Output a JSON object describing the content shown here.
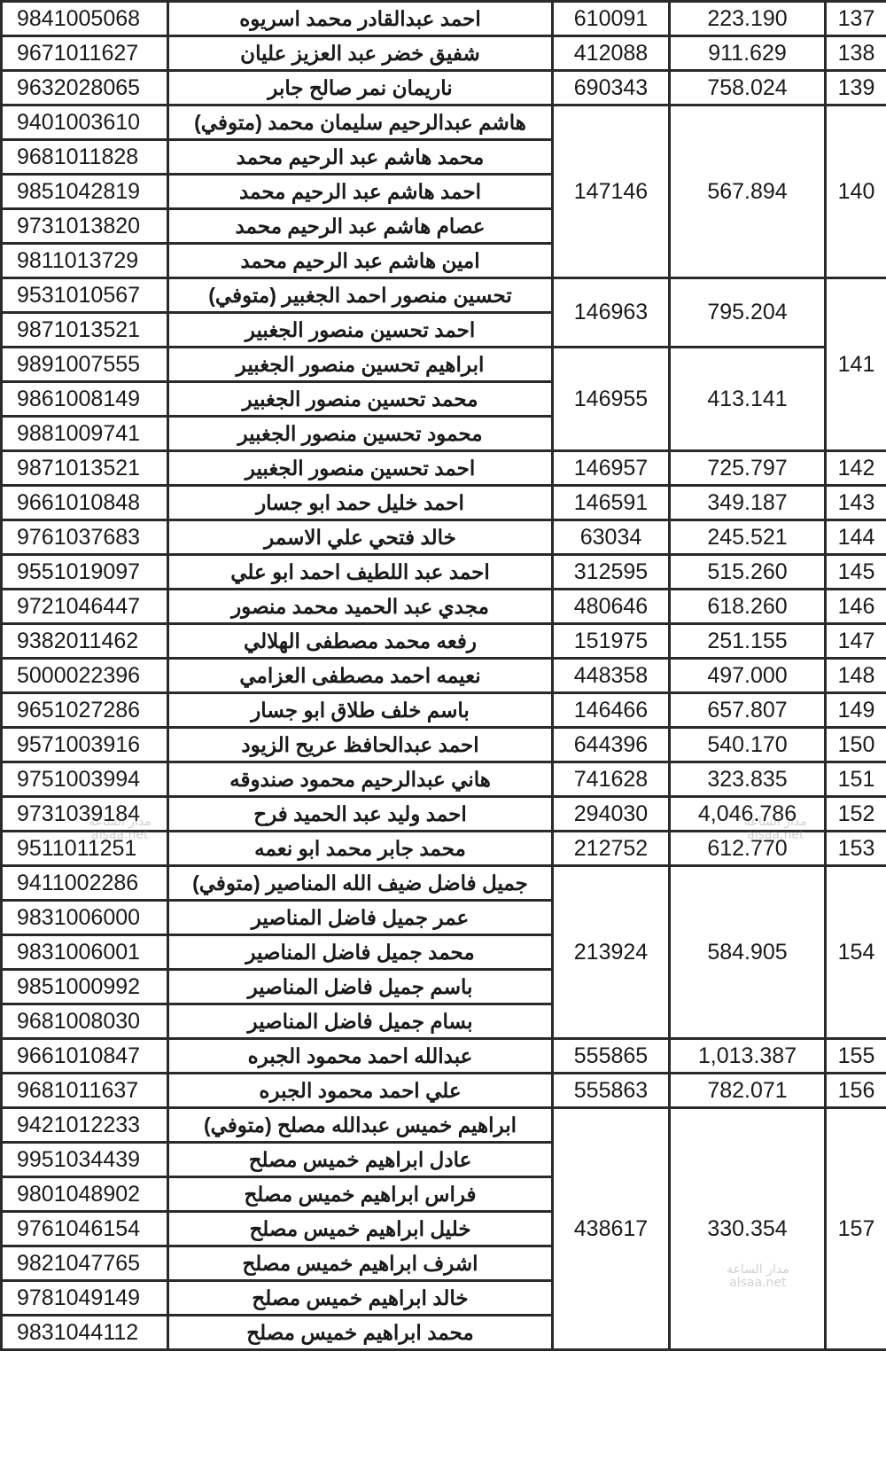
{
  "entries": [
    {
      "no": "137",
      "parcels": [
        {
          "area": "223.190",
          "parcel": "610091",
          "owners": [
            {
              "name": "احمد عبدالقادر محمد اسريوه",
              "id": "9841005068"
            }
          ]
        }
      ]
    },
    {
      "no": "138",
      "parcels": [
        {
          "area": "911.629",
          "parcel": "412088",
          "owners": [
            {
              "name": "شفيق خضر عبد العزيز عليان",
              "id": "9671011627"
            }
          ]
        }
      ]
    },
    {
      "no": "139",
      "parcels": [
        {
          "area": "758.024",
          "parcel": "690343",
          "owners": [
            {
              "name": "ناريمان نمر صالح جابر",
              "id": "9632028065"
            }
          ]
        }
      ]
    },
    {
      "no": "140",
      "parcels": [
        {
          "area": "567.894",
          "parcel": "147146",
          "owners": [
            {
              "name": "هاشم عبدالرحيم سليمان محمد (متوفي)",
              "id": "9401003610"
            },
            {
              "name": "محمد هاشم عبد الرحيم محمد",
              "id": "9681011828"
            },
            {
              "name": "احمد هاشم عبد الرحيم محمد",
              "id": "9851042819"
            },
            {
              "name": "عصام هاشم عبد الرحيم محمد",
              "id": "9731013820"
            },
            {
              "name": "امين هاشم عبد الرحيم محمد",
              "id": "9811013729"
            }
          ]
        }
      ]
    },
    {
      "no": "141",
      "parcels": [
        {
          "area": "795.204",
          "parcel": "146963",
          "owners": [
            {
              "name": "تحسين منصور احمد الجغبير (متوفي)",
              "id": "9531010567"
            },
            {
              "name": "احمد تحسين منصور الجغبير",
              "id": "9871013521"
            }
          ]
        },
        {
          "area": "413.141",
          "parcel": "146955",
          "owners": [
            {
              "name": "ابراهيم تحسين منصور الجغبير",
              "id": "9891007555"
            },
            {
              "name": "محمد تحسين منصور الجغبير",
              "id": "9861008149"
            },
            {
              "name": "محمود تحسين منصور الجغبير",
              "id": "9881009741"
            }
          ]
        }
      ]
    },
    {
      "no": "142",
      "parcels": [
        {
          "area": "725.797",
          "parcel": "146957",
          "owners": [
            {
              "name": "احمد تحسين منصور الجغبير",
              "id": "9871013521"
            }
          ]
        }
      ]
    },
    {
      "no": "143",
      "parcels": [
        {
          "area": "349.187",
          "parcel": "146591",
          "owners": [
            {
              "name": "احمد خليل حمد ابو جسار",
              "id": "9661010848"
            }
          ]
        }
      ]
    },
    {
      "no": "144",
      "parcels": [
        {
          "area": "245.521",
          "parcel": "63034",
          "owners": [
            {
              "name": "خالد فتحي علي الاسمر",
              "id": "9761037683"
            }
          ]
        }
      ]
    },
    {
      "no": "145",
      "parcels": [
        {
          "area": "515.260",
          "parcel": "312595",
          "owners": [
            {
              "name": "احمد عبد اللطيف احمد ابو علي",
              "id": "9551019097"
            }
          ]
        }
      ]
    },
    {
      "no": "146",
      "parcels": [
        {
          "area": "618.260",
          "parcel": "480646",
          "owners": [
            {
              "name": "مجدي عبد الحميد محمد منصور",
              "id": "9721046447"
            }
          ]
        }
      ]
    },
    {
      "no": "147",
      "parcels": [
        {
          "area": "251.155",
          "parcel": "151975",
          "owners": [
            {
              "name": "رفعه محمد مصطفى الهلالي",
              "id": "9382011462"
            }
          ]
        }
      ]
    },
    {
      "no": "148",
      "parcels": [
        {
          "area": "497.000",
          "parcel": "448358",
          "owners": [
            {
              "name": "نعيمه احمد مصطفى العزامي",
              "id": "5000022396"
            }
          ]
        }
      ]
    },
    {
      "no": "149",
      "parcels": [
        {
          "area": "657.807",
          "parcel": "146466",
          "owners": [
            {
              "name": "باسم خلف طلاق ابو جسار",
              "id": "9651027286"
            }
          ]
        }
      ]
    },
    {
      "no": "150",
      "parcels": [
        {
          "area": "540.170",
          "parcel": "644396",
          "owners": [
            {
              "name": "احمد عبدالحافظ عريح الزيود",
              "id": "9571003916"
            }
          ]
        }
      ]
    },
    {
      "no": "151",
      "parcels": [
        {
          "area": "323.835",
          "parcel": "741628",
          "owners": [
            {
              "name": "هاني عبدالرحيم محمود صندوقه",
              "id": "9751003994"
            }
          ]
        }
      ]
    },
    {
      "no": "152",
      "parcels": [
        {
          "area": "4,046.786",
          "parcel": "294030",
          "owners": [
            {
              "name": "احمد وليد عبد الحميد فرح",
              "id": "9731039184"
            }
          ]
        }
      ]
    },
    {
      "no": "153",
      "parcels": [
        {
          "area": "612.770",
          "parcel": "212752",
          "owners": [
            {
              "name": "محمد جابر محمد ابو نعمه",
              "id": "9511011251"
            }
          ]
        }
      ]
    },
    {
      "no": "154",
      "parcels": [
        {
          "area": "584.905",
          "parcel": "213924",
          "owners": [
            {
              "name": "جميل فاضل ضيف الله المناصير (متوفي)",
              "id": "9411002286"
            },
            {
              "name": "عمر جميل فاضل المناصير",
              "id": "9831006000"
            },
            {
              "name": "محمد جميل فاضل المناصير",
              "id": "9831006001"
            },
            {
              "name": "باسم جميل فاضل المناصير",
              "id": "9851000992"
            },
            {
              "name": "بسام جميل فاضل المناصير",
              "id": "9681008030"
            }
          ]
        }
      ]
    },
    {
      "no": "155",
      "parcels": [
        {
          "area": "1,013.387",
          "parcel": "555865",
          "owners": [
            {
              "name": "عبدالله احمد محمود الجبره",
              "id": "9661010847"
            }
          ]
        }
      ]
    },
    {
      "no": "156",
      "parcels": [
        {
          "area": "782.071",
          "parcel": "555863",
          "owners": [
            {
              "name": "علي احمد محمود الجبره",
              "id": "9681011637"
            }
          ]
        }
      ]
    },
    {
      "no": "157",
      "parcels": [
        {
          "area": "330.354",
          "parcel": "438617",
          "owners": [
            {
              "name": "ابراهيم خميس عبدالله مصلح (متوفي)",
              "id": "9421012233"
            },
            {
              "name": "عادل ابراهيم خميس مصلح",
              "id": "9951034439"
            },
            {
              "name": "فراس ابراهيم خميس مصلح",
              "id": "9801048902"
            },
            {
              "name": "خليل ابراهيم خميس مصلح",
              "id": "9761046154"
            },
            {
              "name": "اشرف ابراهيم خميس مصلح",
              "id": "9821047765"
            },
            {
              "name": "خالد ابراهيم خميس مصلح",
              "id": "9781049149"
            },
            {
              "name": "محمد ابراهيم خميس مصلح",
              "id": "9831044112"
            }
          ]
        }
      ]
    }
  ],
  "watermark": {
    "arabic": "مدار الساعة",
    "latin": "alsaa.net"
  }
}
